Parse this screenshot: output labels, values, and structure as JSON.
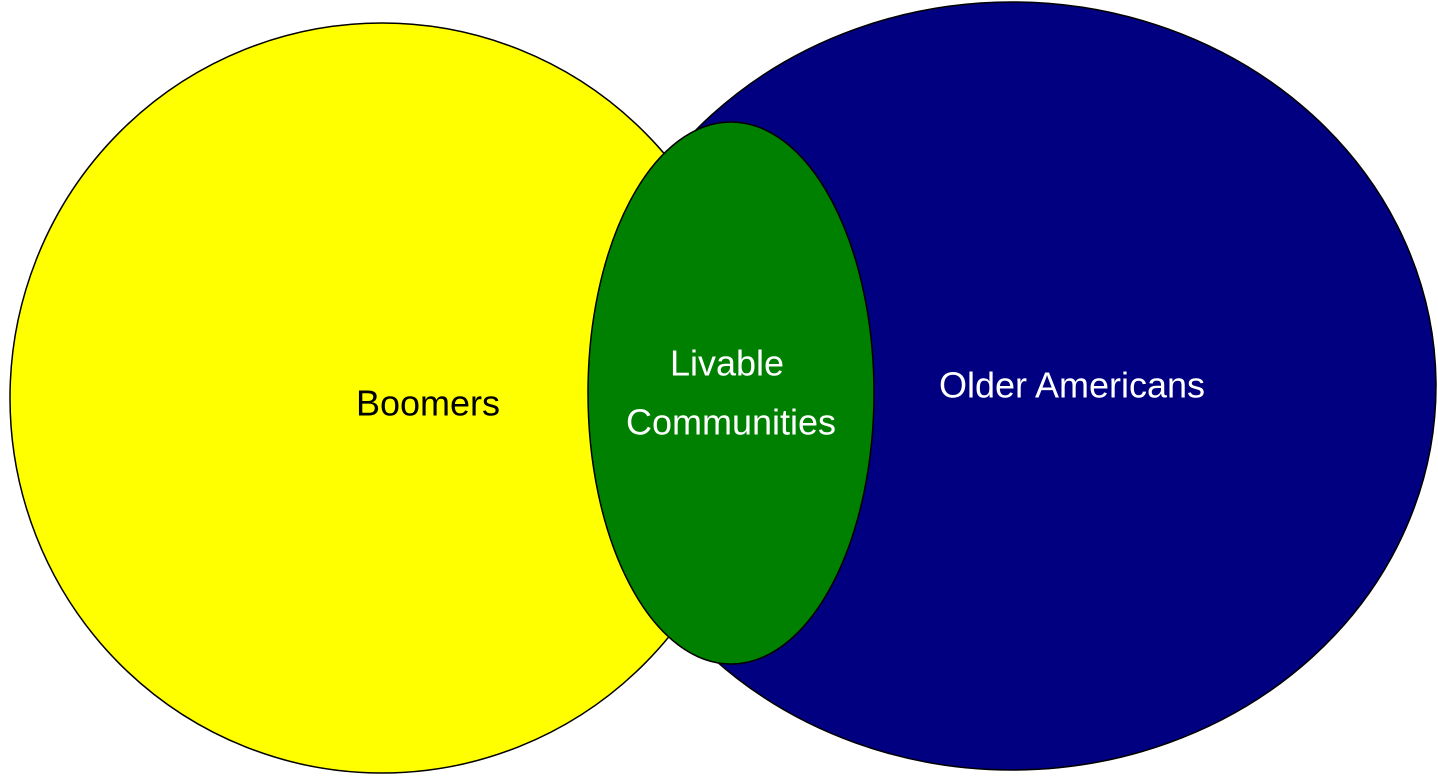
{
  "sets": [
    {
      "label": "Boomers"
    },
    {
      "label": "Older Americans"
    }
  ],
  "intersection": {
    "lines": [
      "Livable",
      "Communities"
    ]
  }
}
